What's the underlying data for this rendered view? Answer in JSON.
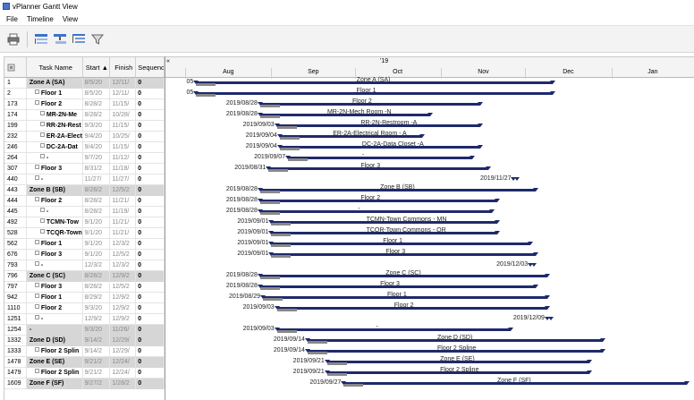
{
  "window": {
    "title": "vPlanner Gantt View"
  },
  "menu": {
    "file": "File",
    "timeline": "Timeline",
    "view": "View"
  },
  "grid": {
    "headers": {
      "id": "",
      "name": "Task Name",
      "start": "Start",
      "sort_arrow": "▲",
      "finish": "Finish",
      "sequence": "Sequence"
    },
    "rows": [
      {
        "id": "1",
        "name": "Zone A (SA)",
        "start": "8/5/20",
        "finish": "12/11/",
        "seq": "0",
        "summary": true,
        "indent": 0,
        "expander": false
      },
      {
        "id": "2",
        "name": "Floor 1",
        "start": "8/5/20",
        "finish": "12/11/",
        "seq": "0",
        "summary": false,
        "indent": 1,
        "expander": true
      },
      {
        "id": "173",
        "name": "Floor 2",
        "start": "8/28/2",
        "finish": "11/15/",
        "seq": "0",
        "summary": false,
        "indent": 1,
        "expander": true
      },
      {
        "id": "174",
        "name": "MR-2N-Me",
        "start": "8/28/2",
        "finish": "10/28/",
        "seq": "0",
        "summary": false,
        "indent": 2,
        "expander": true
      },
      {
        "id": "199",
        "name": "RR-2N-Rest",
        "start": "9/3/20",
        "finish": "11/15/",
        "seq": "0",
        "summary": false,
        "indent": 2,
        "expander": true
      },
      {
        "id": "232",
        "name": "ER-2A-Elect",
        "start": "9/4/20",
        "finish": "10/25/",
        "seq": "0",
        "summary": false,
        "indent": 2,
        "expander": true
      },
      {
        "id": "246",
        "name": "DC-2A-Dat",
        "start": "9/4/20",
        "finish": "11/15/",
        "seq": "0",
        "summary": false,
        "indent": 2,
        "expander": true
      },
      {
        "id": "264",
        "name": "-",
        "start": "9/7/20",
        "finish": "11/12/",
        "seq": "0",
        "summary": false,
        "indent": 2,
        "expander": true
      },
      {
        "id": "307",
        "name": "Floor 3",
        "start": "8/31/2",
        "finish": "11/18/",
        "seq": "0",
        "summary": false,
        "indent": 1,
        "expander": true
      },
      {
        "id": "440",
        "name": "-",
        "start": "11/27/",
        "finish": "11/27/",
        "seq": "0",
        "summary": false,
        "indent": 1,
        "expander": true
      },
      {
        "id": "443",
        "name": "Zone B (SB)",
        "start": "8/28/2",
        "finish": "12/5/2",
        "seq": "0",
        "summary": true,
        "indent": 0,
        "expander": false
      },
      {
        "id": "444",
        "name": "Floor 2",
        "start": "8/28/2",
        "finish": "11/21/",
        "seq": "0",
        "summary": false,
        "indent": 1,
        "expander": true
      },
      {
        "id": "445",
        "name": "-",
        "start": "8/28/2",
        "finish": "11/19/",
        "seq": "0",
        "summary": false,
        "indent": 2,
        "expander": true
      },
      {
        "id": "492",
        "name": "TCMN-Tow",
        "start": "9/1/20",
        "finish": "11/21/",
        "seq": "0",
        "summary": false,
        "indent": 2,
        "expander": true
      },
      {
        "id": "528",
        "name": "TCQR-Town",
        "start": "9/1/20",
        "finish": "11/21/",
        "seq": "0",
        "summary": false,
        "indent": 2,
        "expander": true
      },
      {
        "id": "562",
        "name": "Floor 1",
        "start": "9/1/20",
        "finish": "12/3/2",
        "seq": "0",
        "summary": false,
        "indent": 1,
        "expander": true
      },
      {
        "id": "676",
        "name": "Floor 3",
        "start": "9/1/20",
        "finish": "12/5/2",
        "seq": "0",
        "summary": false,
        "indent": 1,
        "expander": true
      },
      {
        "id": "793",
        "name": "-",
        "start": "12/3/2",
        "finish": "12/3/2",
        "seq": "0",
        "summary": false,
        "indent": 1,
        "expander": true
      },
      {
        "id": "796",
        "name": "Zone C (SC)",
        "start": "8/28/2",
        "finish": "12/9/2",
        "seq": "0",
        "summary": true,
        "indent": 0,
        "expander": false
      },
      {
        "id": "797",
        "name": "Floor 3",
        "start": "8/28/2",
        "finish": "12/5/2",
        "seq": "0",
        "summary": false,
        "indent": 1,
        "expander": true
      },
      {
        "id": "942",
        "name": "Floor 1",
        "start": "8/29/2",
        "finish": "12/9/2",
        "seq": "0",
        "summary": false,
        "indent": 1,
        "expander": true
      },
      {
        "id": "1110",
        "name": "Floor 2",
        "start": "9/3/20",
        "finish": "12/9/2",
        "seq": "0",
        "summary": false,
        "indent": 1,
        "expander": true
      },
      {
        "id": "1251",
        "name": "-",
        "start": "12/9/2",
        "finish": "12/9/2",
        "seq": "0",
        "summary": false,
        "indent": 1,
        "expander": true
      },
      {
        "id": "1254",
        "name": "-",
        "start": "9/3/20",
        "finish": "11/26/",
        "seq": "0",
        "summary": true,
        "indent": 0,
        "expander": false
      },
      {
        "id": "1332",
        "name": "Zone D (SD)",
        "start": "9/14/2",
        "finish": "12/29/",
        "seq": "0",
        "summary": true,
        "indent": 0,
        "expander": false
      },
      {
        "id": "1333",
        "name": "Floor 2 Splin",
        "start": "9/14/2",
        "finish": "12/29/",
        "seq": "0",
        "summary": false,
        "indent": 1,
        "expander": true
      },
      {
        "id": "1478",
        "name": "Zone E (SE)",
        "start": "9/21/2",
        "finish": "12/24/",
        "seq": "0",
        "summary": true,
        "indent": 0,
        "expander": false
      },
      {
        "id": "1479",
        "name": "Floor 2 Splin",
        "start": "9/21/2",
        "finish": "12/24/",
        "seq": "0",
        "summary": false,
        "indent": 1,
        "expander": true
      },
      {
        "id": "1609",
        "name": "Zone F (SF)",
        "start": "9/27/2",
        "finish": "1/28/2",
        "seq": "0",
        "summary": true,
        "indent": 0,
        "expander": false
      }
    ]
  },
  "gantt": {
    "year_label": "'19",
    "collapse_label": "«",
    "months": [
      "Aug",
      "Sep",
      "Oct",
      "Nov",
      "Dec",
      "Jan"
    ],
    "timeline_start": "2019-07-25",
    "timeline_end": "2020-01-31",
    "tasks": [
      {
        "label": "Zone A (SA)",
        "date_label": "05",
        "start": "2019-08-05",
        "end": "2019-12-11",
        "milestone": false
      },
      {
        "label": "Floor 1",
        "date_label": "05",
        "start": "2019-08-05",
        "end": "2019-12-11",
        "milestone": false
      },
      {
        "label": "Floor 2",
        "date_label": "2019/08/28",
        "start": "2019-08-28",
        "end": "2019-11-15",
        "milestone": false
      },
      {
        "label": "MR-2N-Mech Room -N",
        "date_label": "2019/08/28",
        "start": "2019-08-28",
        "end": "2019-10-28",
        "milestone": false
      },
      {
        "label": "RR-2N-Restroom -A",
        "date_label": "2019/09/03",
        "start": "2019-09-03",
        "end": "2019-11-15",
        "milestone": false
      },
      {
        "label": "ER-2A-Electrical Room - A",
        "date_label": "2019/09/04",
        "start": "2019-09-04",
        "end": "2019-10-25",
        "milestone": false
      },
      {
        "label": "DC-2A-Data Closet -A",
        "date_label": "2019/09/04",
        "start": "2019-09-04",
        "end": "2019-11-15",
        "milestone": false
      },
      {
        "label": "-",
        "date_label": "2019/09/07",
        "start": "2019-09-07",
        "end": "2019-11-12",
        "milestone": false
      },
      {
        "label": "Floor 3",
        "date_label": "2019/08/31",
        "start": "2019-08-31",
        "end": "2019-11-18",
        "milestone": false
      },
      {
        "label": "",
        "date_label": "2019/11/27",
        "start": "2019-11-27",
        "end": "2019-11-27",
        "milestone": true
      },
      {
        "label": "Zone B (SB)",
        "date_label": "2019/08/28",
        "start": "2019-08-28",
        "end": "2019-12-05",
        "milestone": false
      },
      {
        "label": "Floor 2",
        "date_label": "2019/08/28",
        "start": "2019-08-28",
        "end": "2019-11-21",
        "milestone": false
      },
      {
        "label": "-",
        "date_label": "2019/08/28",
        "start": "2019-08-28",
        "end": "2019-11-19",
        "milestone": false
      },
      {
        "label": "TCMN-Town Commons - MN",
        "date_label": "2019/09/01",
        "start": "2019-09-01",
        "end": "2019-11-21",
        "milestone": false
      },
      {
        "label": "TCQR-Town Commons - QR",
        "date_label": "2019/09/01",
        "start": "2019-09-01",
        "end": "2019-11-21",
        "milestone": false
      },
      {
        "label": "Floor 1",
        "date_label": "2019/09/01",
        "start": "2019-09-01",
        "end": "2019-12-03",
        "milestone": false
      },
      {
        "label": "Floor 3",
        "date_label": "2019/09/01",
        "start": "2019-09-01",
        "end": "2019-12-05",
        "milestone": false
      },
      {
        "label": "",
        "date_label": "2019/12/03",
        "start": "2019-12-03",
        "end": "2019-12-03",
        "milestone": true
      },
      {
        "label": "Zone C (SC)",
        "date_label": "2019/08/28",
        "start": "2019-08-28",
        "end": "2019-12-09",
        "milestone": false
      },
      {
        "label": "Floor 3",
        "date_label": "2019/08/28",
        "start": "2019-08-28",
        "end": "2019-12-05",
        "milestone": false
      },
      {
        "label": "Floor 1",
        "date_label": "2019/08/29",
        "start": "2019-08-29",
        "end": "2019-12-09",
        "milestone": false
      },
      {
        "label": "Floor 2",
        "date_label": "2019/09/03",
        "start": "2019-09-03",
        "end": "2019-12-09",
        "milestone": false
      },
      {
        "label": "",
        "date_label": "2019/12/09",
        "start": "2019-12-09",
        "end": "2019-12-09",
        "milestone": true
      },
      {
        "label": "-",
        "date_label": "2019/09/03",
        "start": "2019-09-03",
        "end": "2019-11-26",
        "milestone": false
      },
      {
        "label": "Zone D (SD)",
        "date_label": "2019/09/14",
        "start": "2019-09-14",
        "end": "2019-12-29",
        "milestone": false
      },
      {
        "label": "Floor 2 Spline",
        "date_label": "2019/09/14",
        "start": "2019-09-14",
        "end": "2019-12-29",
        "milestone": false
      },
      {
        "label": "Zone E (SE)",
        "date_label": "2019/09/21",
        "start": "2019-09-21",
        "end": "2019-12-24",
        "milestone": false
      },
      {
        "label": "Floor 2 Spline",
        "date_label": "2019/09/21",
        "start": "2019-09-21",
        "end": "2019-12-24",
        "milestone": false
      },
      {
        "label": "Zone F (SF)",
        "date_label": "2019/09/27",
        "start": "2019-09-27",
        "end": "2020-01-28",
        "milestone": false
      }
    ]
  },
  "colors": {
    "bar": "#1f2a6b",
    "summary_row": "#d6d6d6",
    "progress": "#888888"
  }
}
